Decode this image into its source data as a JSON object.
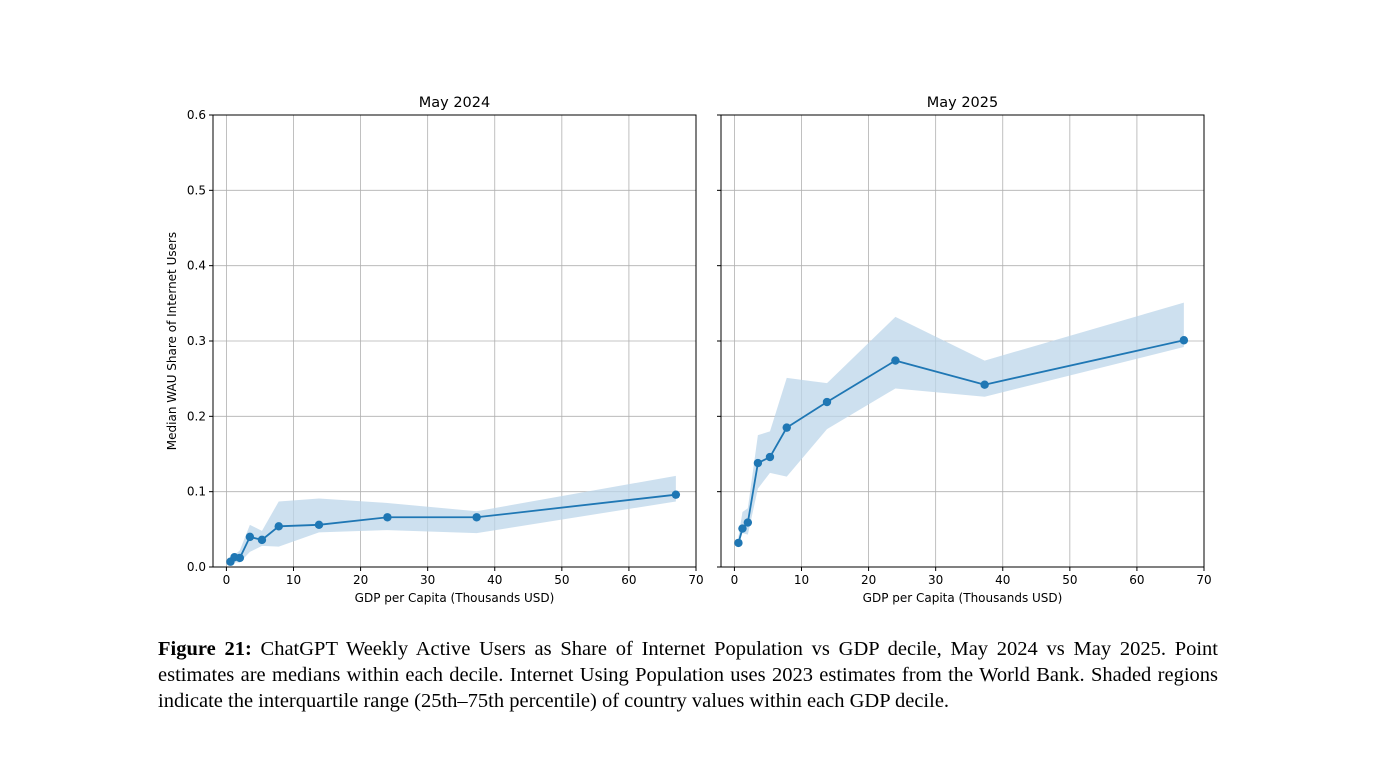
{
  "figure": {
    "caption_label": "Figure 21:",
    "caption_text": " ChatGPT Weekly Active Users as Share of Internet Population vs GDP decile, May 2024 vs May 2025. Point estimates are medians within each decile. Internet Using Population uses 2023 estimates from the World Bank. Shaded regions indicate the interquartile range (25th–75th percentile) of country values within each GDP decile."
  },
  "chart_data": [
    {
      "type": "line",
      "title": "May 2024",
      "xlabel": "GDP per Capita (Thousands USD)",
      "ylabel": "Median WAU Share of Internet Users",
      "xlim": [
        -2,
        70
      ],
      "ylim": [
        0,
        0.6
      ],
      "xticks": [
        0,
        10,
        20,
        30,
        40,
        50,
        60,
        70
      ],
      "yticks": [
        0.0,
        0.1,
        0.2,
        0.3,
        0.4,
        0.5,
        0.6
      ],
      "grid": true,
      "color": "#1f77b4",
      "band_color": "#bcd6ea",
      "x": [
        0.6,
        1.2,
        2.0,
        3.5,
        5.3,
        7.8,
        13.8,
        24.0,
        37.3,
        67.0
      ],
      "values": [
        0.007,
        0.013,
        0.012,
        0.04,
        0.036,
        0.054,
        0.056,
        0.066,
        0.066,
        0.096
      ],
      "q25": [
        0.003,
        0.006,
        0.006,
        0.02,
        0.028,
        0.027,
        0.046,
        0.049,
        0.045,
        0.087
      ],
      "q75": [
        0.01,
        0.016,
        0.022,
        0.056,
        0.048,
        0.087,
        0.091,
        0.085,
        0.074,
        0.121
      ]
    },
    {
      "type": "line",
      "title": "May 2025",
      "xlabel": "GDP per Capita (Thousands USD)",
      "ylabel": "",
      "xlim": [
        -2,
        70
      ],
      "ylim": [
        0,
        0.6
      ],
      "xticks": [
        0,
        10,
        20,
        30,
        40,
        50,
        60,
        70
      ],
      "yticks": [
        0.0,
        0.1,
        0.2,
        0.3,
        0.4,
        0.5,
        0.6
      ],
      "grid": true,
      "color": "#1f77b4",
      "band_color": "#bcd6ea",
      "x": [
        0.6,
        1.2,
        2.0,
        3.5,
        5.3,
        7.8,
        13.8,
        24.0,
        37.3,
        67.0
      ],
      "values": [
        0.032,
        0.051,
        0.059,
        0.138,
        0.146,
        0.185,
        0.219,
        0.274,
        0.242,
        0.301
      ],
      "q25": [
        0.028,
        0.045,
        0.043,
        0.104,
        0.125,
        0.12,
        0.183,
        0.237,
        0.226,
        0.292
      ],
      "q75": [
        0.04,
        0.073,
        0.078,
        0.175,
        0.18,
        0.251,
        0.244,
        0.332,
        0.274,
        0.351
      ]
    }
  ]
}
